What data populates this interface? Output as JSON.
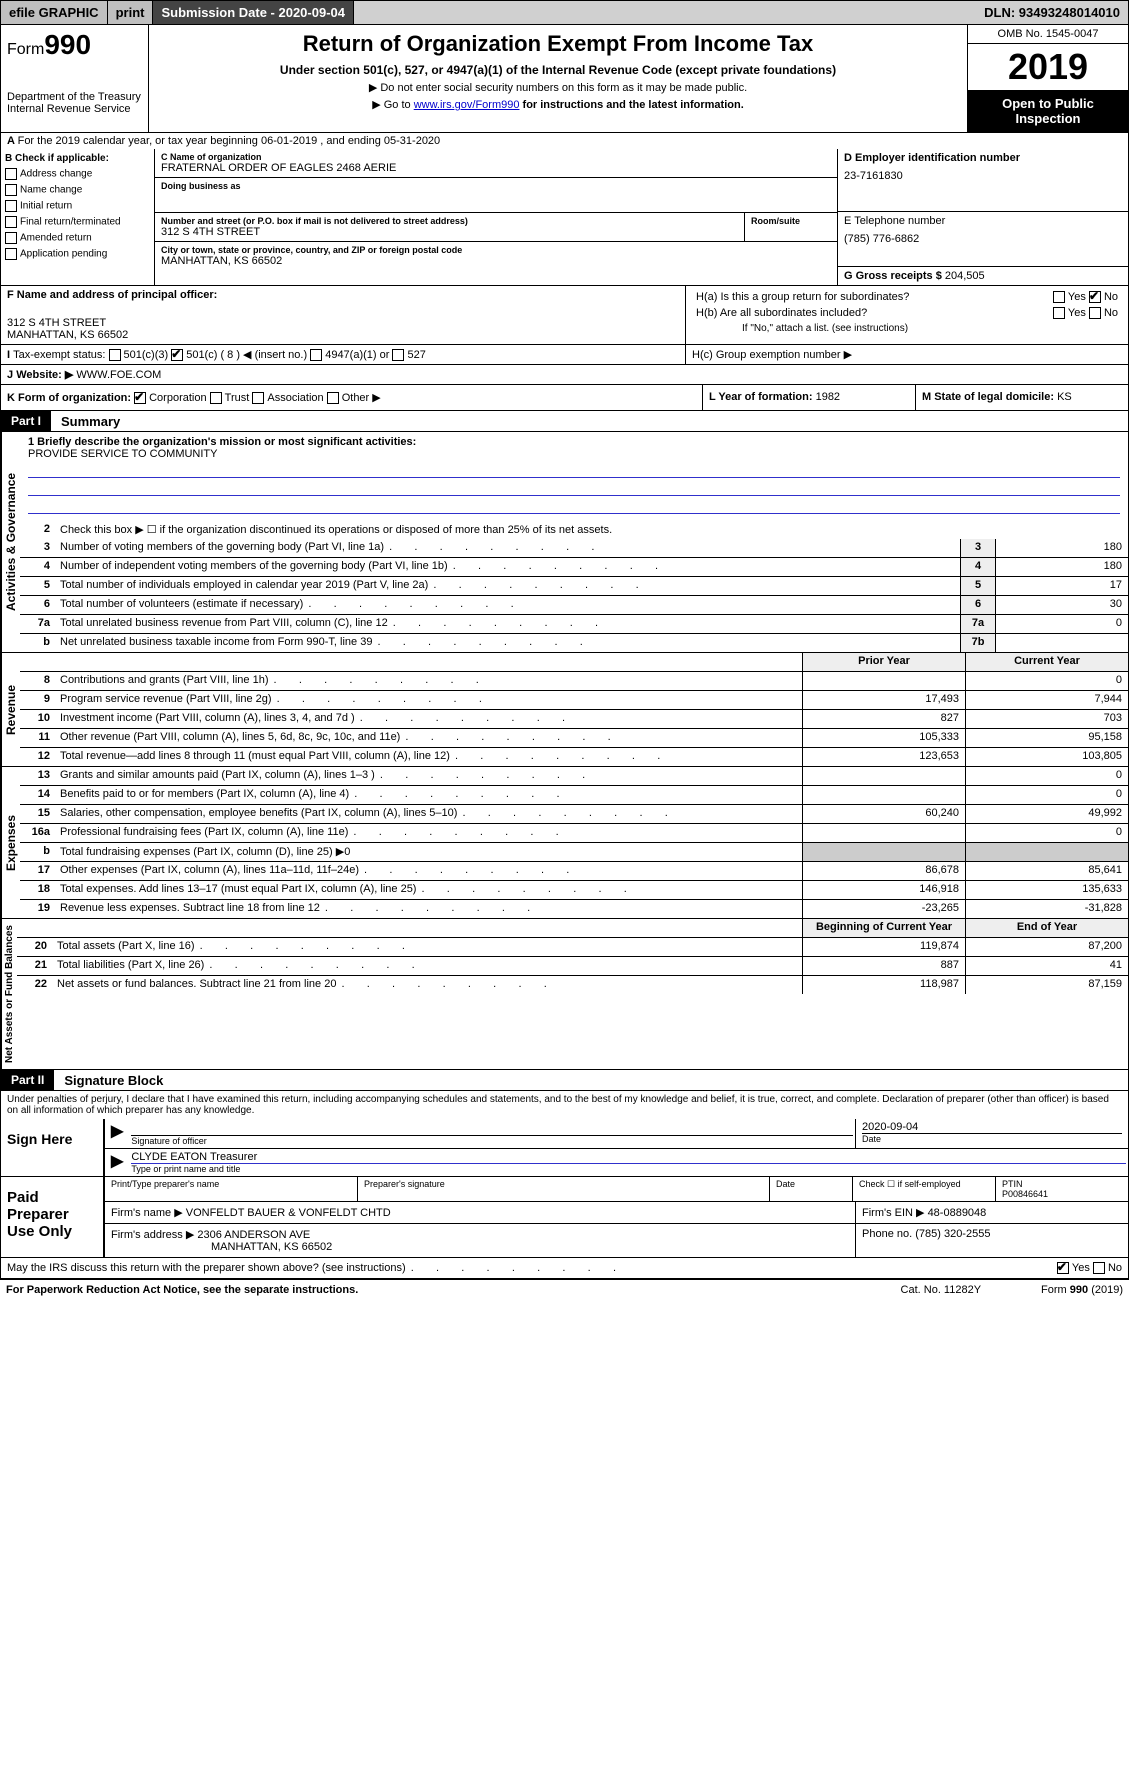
{
  "topbar": {
    "efile": "efile GRAPHIC",
    "print": "print",
    "sub_label": "Submission Date - 2020-09-04",
    "dln": "DLN: 93493248014010"
  },
  "header": {
    "form_label": "Form",
    "form_num": "990",
    "dept1": "Department of the Treasury",
    "dept2": "Internal Revenue Service",
    "title": "Return of Organization Exempt From Income Tax",
    "subtitle": "Under section 501(c), 527, or 4947(a)(1) of the Internal Revenue Code (except private foundations)",
    "note1": "▶ Do not enter social security numbers on this form as it may be made public.",
    "note2_pre": "▶ Go to ",
    "note2_link": "www.irs.gov/Form990",
    "note2_post": " for instructions and the latest information.",
    "omb": "OMB No. 1545-0047",
    "year": "2019",
    "open": "Open to Public Inspection"
  },
  "period": {
    "line": "For the 2019 calendar year, or tax year beginning 06-01-2019    , and ending 05-31-2020"
  },
  "boxB": {
    "label": "B Check if applicable:",
    "items": [
      "Address change",
      "Name change",
      "Initial return",
      "Final return/terminated",
      "Amended return",
      "Application pending"
    ]
  },
  "boxC": {
    "name_label": "C Name of organization",
    "name": "FRATERNAL ORDER OF EAGLES 2468 AERIE",
    "dba_label": "Doing business as",
    "addr_label": "Number and street (or P.O. box if mail is not delivered to street address)",
    "room_label": "Room/suite",
    "addr": "312 S 4TH STREET",
    "city_label": "City or town, state or province, country, and ZIP or foreign postal code",
    "city": "MANHATTAN, KS  66502"
  },
  "boxD": {
    "label": "D Employer identification number",
    "value": "23-7161830"
  },
  "boxE": {
    "label": "E Telephone number",
    "value": "(785) 776-6862"
  },
  "boxG": {
    "label": "G Gross receipts $",
    "value": "204,505"
  },
  "boxF": {
    "label": "F  Name and address of principal officer:",
    "addr1": "312 S 4TH STREET",
    "addr2": "MANHATTAN, KS  66502"
  },
  "boxH": {
    "a": "H(a)  Is this a group return for subordinates?",
    "b": "H(b)  Are all subordinates included?",
    "b_note": "If \"No,\" attach a list. (see instructions)",
    "c": "H(c)  Group exemption number ▶"
  },
  "boxI": {
    "label": "Tax-exempt status:",
    "c3": "501(c)(3)",
    "c": "501(c) ( 8 ) ◀ (insert no.)",
    "a1": "4947(a)(1) or",
    "527": "527"
  },
  "boxJ": {
    "label": "Website: ▶",
    "value": "WWW.FOE.COM"
  },
  "boxK": {
    "label": "K Form of organization:",
    "corp": "Corporation",
    "trust": "Trust",
    "assoc": "Association",
    "other": "Other ▶"
  },
  "boxL": {
    "label": "L Year of formation:",
    "value": "1982"
  },
  "boxM": {
    "label": "M State of legal domicile:",
    "value": "KS"
  },
  "part1": {
    "num": "Part I",
    "title": "Summary",
    "line1_label": "1  Briefly describe the organization's mission or most significant activities:",
    "line1_value": "PROVIDE SERVICE TO COMMUNITY",
    "tabs": {
      "ag": "Activities & Governance",
      "rev": "Revenue",
      "exp": "Expenses",
      "na": "Net Assets or Fund Balances"
    },
    "rows_ag": [
      {
        "n": "2",
        "d": "Check this box ▶ ☐  if the organization discontinued its operations or disposed of more than 25% of its net assets."
      },
      {
        "n": "3",
        "d": "Number of voting members of the governing body (Part VI, line 1a)",
        "box": "3",
        "v": "180"
      },
      {
        "n": "4",
        "d": "Number of independent voting members of the governing body (Part VI, line 1b)",
        "box": "4",
        "v": "180"
      },
      {
        "n": "5",
        "d": "Total number of individuals employed in calendar year 2019 (Part V, line 2a)",
        "box": "5",
        "v": "17"
      },
      {
        "n": "6",
        "d": "Total number of volunteers (estimate if necessary)",
        "box": "6",
        "v": "30"
      },
      {
        "n": "7a",
        "d": "Total unrelated business revenue from Part VIII, column (C), line 12",
        "box": "7a",
        "v": "0"
      },
      {
        "n": "b",
        "d": "Net unrelated business taxable income from Form 990-T, line 39",
        "box": "7b",
        "v": ""
      }
    ],
    "hdr_prior": "Prior Year",
    "hdr_curr": "Current Year",
    "rows_rev": [
      {
        "n": "8",
        "d": "Contributions and grants (Part VIII, line 1h)",
        "p": "",
        "c": "0"
      },
      {
        "n": "9",
        "d": "Program service revenue (Part VIII, line 2g)",
        "p": "17,493",
        "c": "7,944"
      },
      {
        "n": "10",
        "d": "Investment income (Part VIII, column (A), lines 3, 4, and 7d )",
        "p": "827",
        "c": "703"
      },
      {
        "n": "11",
        "d": "Other revenue (Part VIII, column (A), lines 5, 6d, 8c, 9c, 10c, and 11e)",
        "p": "105,333",
        "c": "95,158"
      },
      {
        "n": "12",
        "d": "Total revenue—add lines 8 through 11 (must equal Part VIII, column (A), line 12)",
        "p": "123,653",
        "c": "103,805"
      }
    ],
    "rows_exp": [
      {
        "n": "13",
        "d": "Grants and similar amounts paid (Part IX, column (A), lines 1–3 )",
        "p": "",
        "c": "0"
      },
      {
        "n": "14",
        "d": "Benefits paid to or for members (Part IX, column (A), line 4)",
        "p": "",
        "c": "0"
      },
      {
        "n": "15",
        "d": "Salaries, other compensation, employee benefits (Part IX, column (A), lines 5–10)",
        "p": "60,240",
        "c": "49,992"
      },
      {
        "n": "16a",
        "d": "Professional fundraising fees (Part IX, column (A), line 11e)",
        "p": "",
        "c": "0"
      },
      {
        "n": "b",
        "d": "Total fundraising expenses (Part IX, column (D), line 25) ▶0",
        "p": null,
        "c": null,
        "noval": true
      },
      {
        "n": "17",
        "d": "Other expenses (Part IX, column (A), lines 11a–11d, 11f–24e)",
        "p": "86,678",
        "c": "85,641"
      },
      {
        "n": "18",
        "d": "Total expenses. Add lines 13–17 (must equal Part IX, column (A), line 25)",
        "p": "146,918",
        "c": "135,633"
      },
      {
        "n": "19",
        "d": "Revenue less expenses. Subtract line 18 from line 12",
        "p": "-23,265",
        "c": "-31,828"
      }
    ],
    "hdr_beg": "Beginning of Current Year",
    "hdr_end": "End of Year",
    "rows_na": [
      {
        "n": "20",
        "d": "Total assets (Part X, line 16)",
        "p": "119,874",
        "c": "87,200"
      },
      {
        "n": "21",
        "d": "Total liabilities (Part X, line 26)",
        "p": "887",
        "c": "41"
      },
      {
        "n": "22",
        "d": "Net assets or fund balances. Subtract line 21 from line 20",
        "p": "118,987",
        "c": "87,159"
      }
    ]
  },
  "part2": {
    "num": "Part II",
    "title": "Signature Block",
    "perjury": "Under penalties of perjury, I declare that I have examined this return, including accompanying schedules and statements, and to the best of my knowledge and belief, it is true, correct, and complete. Declaration of preparer (other than officer) is based on all information of which preparer has any knowledge.",
    "sign_here": "Sign Here",
    "sig_officer": "Signature of officer",
    "date": "2020-09-04",
    "date_label": "Date",
    "name": "CLYDE EATON Treasurer",
    "name_label": "Type or print name and title",
    "paid": "Paid Preparer Use Only",
    "prep_name_label": "Print/Type preparer's name",
    "prep_sig_label": "Preparer's signature",
    "prep_date_label": "Date",
    "check_self": "Check ☐ if self-employed",
    "ptin_label": "PTIN",
    "ptin": "P00846641",
    "firm_name_label": "Firm's name    ▶",
    "firm_name": "VONFELDT BAUER & VONFELDT CHTD",
    "firm_ein_label": "Firm's EIN ▶",
    "firm_ein": "48-0889048",
    "firm_addr_label": "Firm's address ▶",
    "firm_addr1": "2306 ANDERSON AVE",
    "firm_addr2": "MANHATTAN, KS  66502",
    "phone_label": "Phone no.",
    "phone": "(785) 320-2555",
    "discuss": "May the IRS discuss this return with the preparer shown above? (see instructions)",
    "yes": "Yes",
    "no": "No"
  },
  "footer": {
    "left": "For Paperwork Reduction Act Notice, see the separate instructions.",
    "mid": "Cat. No. 11282Y",
    "right": "Form 990 (2019)"
  }
}
